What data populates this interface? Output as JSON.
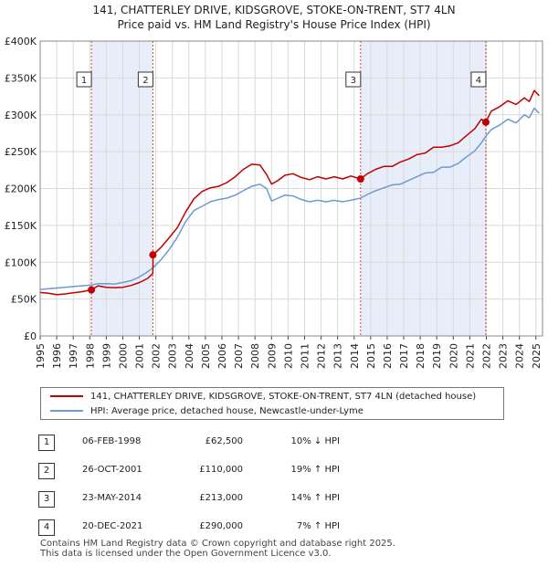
{
  "chart_data": {
    "type": "line",
    "title": "141, CHATTERLEY DRIVE, KIDSGROVE, STOKE-ON-TRENT, ST7 4LN",
    "subtitle": "Price paid vs. HM Land Registry's House Price Index (HPI)",
    "xlabel": "",
    "ylabel": "",
    "xlim": [
      1995,
      2025.4
    ],
    "ylim": [
      0,
      400000
    ],
    "grid": true,
    "x_ticks": [
      "1995",
      "1996",
      "1997",
      "1998",
      "1999",
      "2000",
      "2001",
      "2002",
      "2003",
      "2004",
      "2005",
      "2006",
      "2007",
      "2008",
      "2009",
      "2010",
      "2011",
      "2012",
      "2013",
      "2014",
      "2015",
      "2016",
      "2017",
      "2018",
      "2019",
      "2020",
      "2021",
      "2022",
      "2023",
      "2024",
      "2025"
    ],
    "y_ticks": [
      "£0",
      "£50K",
      "£100K",
      "£150K",
      "£200K",
      "£250K",
      "£300K",
      "£350K",
      "£400K"
    ],
    "legend": [
      "141, CHATTERLEY DRIVE, KIDSGROVE, STOKE-ON-TRENT, ST7 4LN (detached house)",
      "HPI: Average price, detached house, Newcastle-under-Lyme"
    ],
    "series": [
      {
        "name": "141, CHATTERLEY DRIVE, KIDSGROVE, STOKE-ON-TRENT, ST7 4LN (detached house)",
        "color": "#c00000",
        "x": [
          1995.0,
          1995.5,
          1996.0,
          1996.5,
          1997.0,
          1997.5,
          1998.1,
          1998.5,
          1999.0,
          1999.5,
          2000.0,
          2000.5,
          2001.0,
          2001.5,
          2001.82,
          2001.83,
          2002.3,
          2002.8,
          2003.3,
          2003.8,
          2004.3,
          2004.8,
          2005.3,
          2005.8,
          2006.3,
          2006.8,
          2007.3,
          2007.8,
          2008.3,
          2008.7,
          2009.0,
          2009.4,
          2009.8,
          2010.3,
          2010.8,
          2011.3,
          2011.8,
          2012.3,
          2012.8,
          2013.3,
          2013.8,
          2014.39,
          2014.8,
          2015.3,
          2015.8,
          2016.3,
          2016.8,
          2017.3,
          2017.8,
          2018.3,
          2018.8,
          2019.3,
          2019.8,
          2020.3,
          2020.8,
          2021.3,
          2021.7,
          2021.97,
          2022.3,
          2022.8,
          2023.3,
          2023.8,
          2024.3,
          2024.6,
          2024.9,
          2025.2
        ],
        "values": [
          59000,
          58000,
          56000,
          57000,
          58500,
          60000,
          62500,
          68000,
          66000,
          65500,
          66000,
          68500,
          72500,
          78000,
          85000,
          110000,
          120000,
          133000,
          147000,
          168000,
          186000,
          196000,
          201000,
          203000,
          208000,
          216000,
          226000,
          233000,
          232000,
          219000,
          206000,
          211000,
          218000,
          220000,
          215000,
          212000,
          216000,
          213000,
          216000,
          213000,
          217000,
          213000,
          220000,
          226000,
          230000,
          230000,
          236000,
          240000,
          246000,
          248000,
          256000,
          256000,
          258000,
          262000,
          272000,
          281000,
          294000,
          290000,
          305000,
          311000,
          319000,
          314000,
          323000,
          318000,
          333000,
          326000
        ]
      },
      {
        "name": "HPI: Average price, detached house, Newcastle-under-Lyme",
        "color": "#6b9bd1",
        "x": [
          1995.0,
          1995.5,
          1996.0,
          1996.5,
          1997.0,
          1997.5,
          1998.1,
          1998.5,
          1999.0,
          1999.5,
          2000.0,
          2000.5,
          2001.0,
          2001.5,
          2001.82,
          2002.3,
          2002.8,
          2003.3,
          2003.8,
          2004.3,
          2004.8,
          2005.3,
          2005.8,
          2006.3,
          2006.8,
          2007.3,
          2007.8,
          2008.3,
          2008.7,
          2009.0,
          2009.4,
          2009.8,
          2010.3,
          2010.8,
          2011.3,
          2011.8,
          2012.3,
          2012.8,
          2013.3,
          2013.8,
          2014.39,
          2014.8,
          2015.3,
          2015.8,
          2016.3,
          2016.8,
          2017.3,
          2017.8,
          2018.3,
          2018.8,
          2019.3,
          2019.8,
          2020.3,
          2020.8,
          2021.3,
          2021.7,
          2021.97,
          2022.3,
          2022.8,
          2023.3,
          2023.8,
          2024.3,
          2024.6,
          2024.9,
          2025.2
        ],
        "values": [
          63000,
          64000,
          65000,
          66000,
          67000,
          68000,
          69000,
          71000,
          71000,
          70500,
          72500,
          75000,
          80000,
          87000,
          92500,
          103000,
          117000,
          134000,
          155000,
          170000,
          176000,
          182000,
          185000,
          187000,
          191000,
          197000,
          203000,
          206000,
          200000,
          183000,
          187000,
          191000,
          190000,
          185000,
          182000,
          184000,
          182000,
          184000,
          182000,
          184000,
          187000,
          192000,
          197000,
          201000,
          205000,
          206000,
          211000,
          216000,
          221000,
          222000,
          229000,
          229000,
          234000,
          243000,
          251000,
          262000,
          271000,
          280000,
          286000,
          294000,
          289000,
          300000,
          296000,
          309000,
          302000
        ]
      }
    ],
    "sales": [
      {
        "label": "1",
        "x": 1998.1,
        "value": 62500,
        "date": "06-FEB-1998",
        "price": "£62,500",
        "hpi": "10% ↓ HPI"
      },
      {
        "label": "2",
        "x": 2001.82,
        "value": 110000,
        "date": "26-OCT-2001",
        "price": "£110,000",
        "hpi": "19% ↑ HPI"
      },
      {
        "label": "3",
        "x": 2014.39,
        "value": 213000,
        "date": "23-MAY-2014",
        "price": "£213,000",
        "hpi": "14% ↑ HPI"
      },
      {
        "label": "4",
        "x": 2021.97,
        "value": 290000,
        "date": "20-DEC-2021",
        "price": "£290,000",
        "hpi": "7% ↑ HPI"
      }
    ],
    "shaded_periods": [
      [
        1998.1,
        2001.82
      ],
      [
        2014.39,
        2021.97
      ]
    ],
    "colors": {
      "property": "#c00000",
      "hpi": "#6b9bd1",
      "shade": "#e8eef9",
      "grid": "#d9d9d9",
      "marker_line": "#d94040"
    }
  },
  "footer": {
    "line1": "Contains HM Land Registry data © Crown copyright and database right 2025.",
    "line2": "This data is licensed under the Open Government Licence v3.0."
  }
}
